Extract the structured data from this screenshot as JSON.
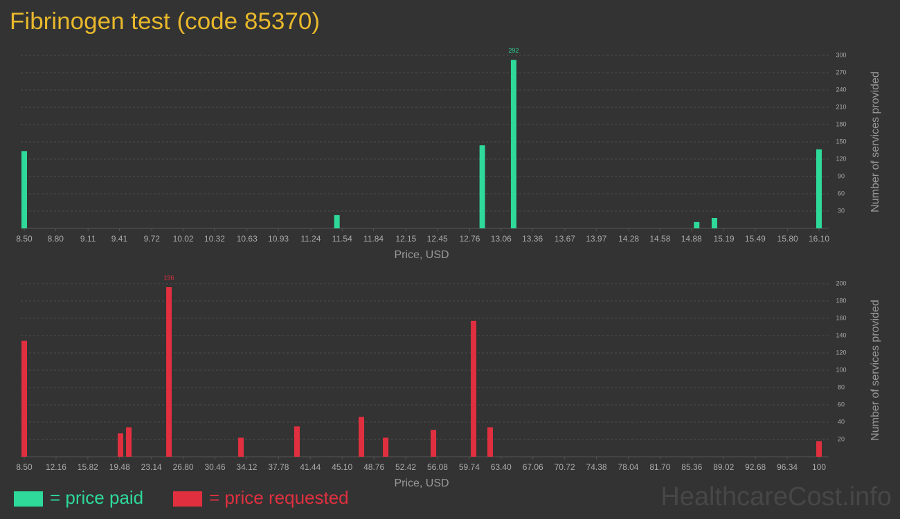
{
  "title": "Fibrinogen test (code 85370)",
  "watermark": "HealthcareCost.info",
  "chart_data": [
    {
      "type": "bar",
      "x_label": "Price, USD",
      "y_label": "Number of services provided",
      "x": [
        8.5,
        11.49,
        12.88,
        13.18,
        14.93,
        15.1,
        16.1
      ],
      "series": [
        {
          "name": "= price paid",
          "color": "#2ed99a",
          "values": [
            134,
            23,
            144,
            292,
            11,
            18,
            137
          ]
        }
      ],
      "xlim": [
        8.5,
        16.1
      ],
      "xticks": [
        {
          "value": 8.5,
          "label": "8.50"
        },
        {
          "value": 8.8,
          "label": "8.80"
        },
        9.11,
        9.41,
        9.72,
        10.02,
        10.32,
        10.63,
        10.93,
        11.24,
        11.54,
        11.84,
        12.15,
        12.45,
        12.76,
        13.06,
        13.36,
        13.67,
        13.97,
        14.28,
        14.58,
        14.88,
        15.19,
        15.49,
        {
          "value": 15.8,
          "label": "15.80"
        },
        {
          "value": 16.1,
          "label": "16.10"
        }
      ],
      "ylim": [
        0,
        300
      ],
      "yticks": [
        30,
        60,
        90,
        120,
        150,
        180,
        210,
        240,
        270,
        300
      ],
      "grid": true
    },
    {
      "type": "bar",
      "x_label": "Price, USD",
      "y_label": "Number of services provided",
      "x": [
        8.5,
        19.58,
        20.54,
        25.16,
        33.45,
        39.9,
        47.32,
        50.11,
        55.61,
        60.23,
        62.14,
        100
      ],
      "series": [
        {
          "name": "= price requested",
          "color": "#e0303f",
          "values": [
            134,
            27,
            34,
            196,
            22,
            35,
            46,
            22,
            31,
            157,
            34,
            18
          ]
        }
      ],
      "xlim": [
        8.5,
        100
      ],
      "xticks": [
        {
          "value": 8.5,
          "label": "8.50"
        },
        12.16,
        15.82,
        19.48,
        23.14,
        {
          "value": 26.8,
          "label": "26.80"
        },
        30.46,
        34.12,
        37.78,
        41.44,
        {
          "value": 45.1,
          "label": "45.10"
        },
        48.76,
        52.42,
        56.08,
        59.74,
        {
          "value": 63.4,
          "label": "63.40"
        },
        67.06,
        70.72,
        74.38,
        78.04,
        {
          "value": 81.7,
          "label": "81.70"
        },
        85.36,
        89.02,
        92.68,
        96.34,
        100
      ],
      "ylim": [
        0,
        200
      ],
      "yticks": [
        20,
        40,
        60,
        80,
        100,
        120,
        140,
        160,
        180,
        200
      ],
      "grid": true
    }
  ]
}
